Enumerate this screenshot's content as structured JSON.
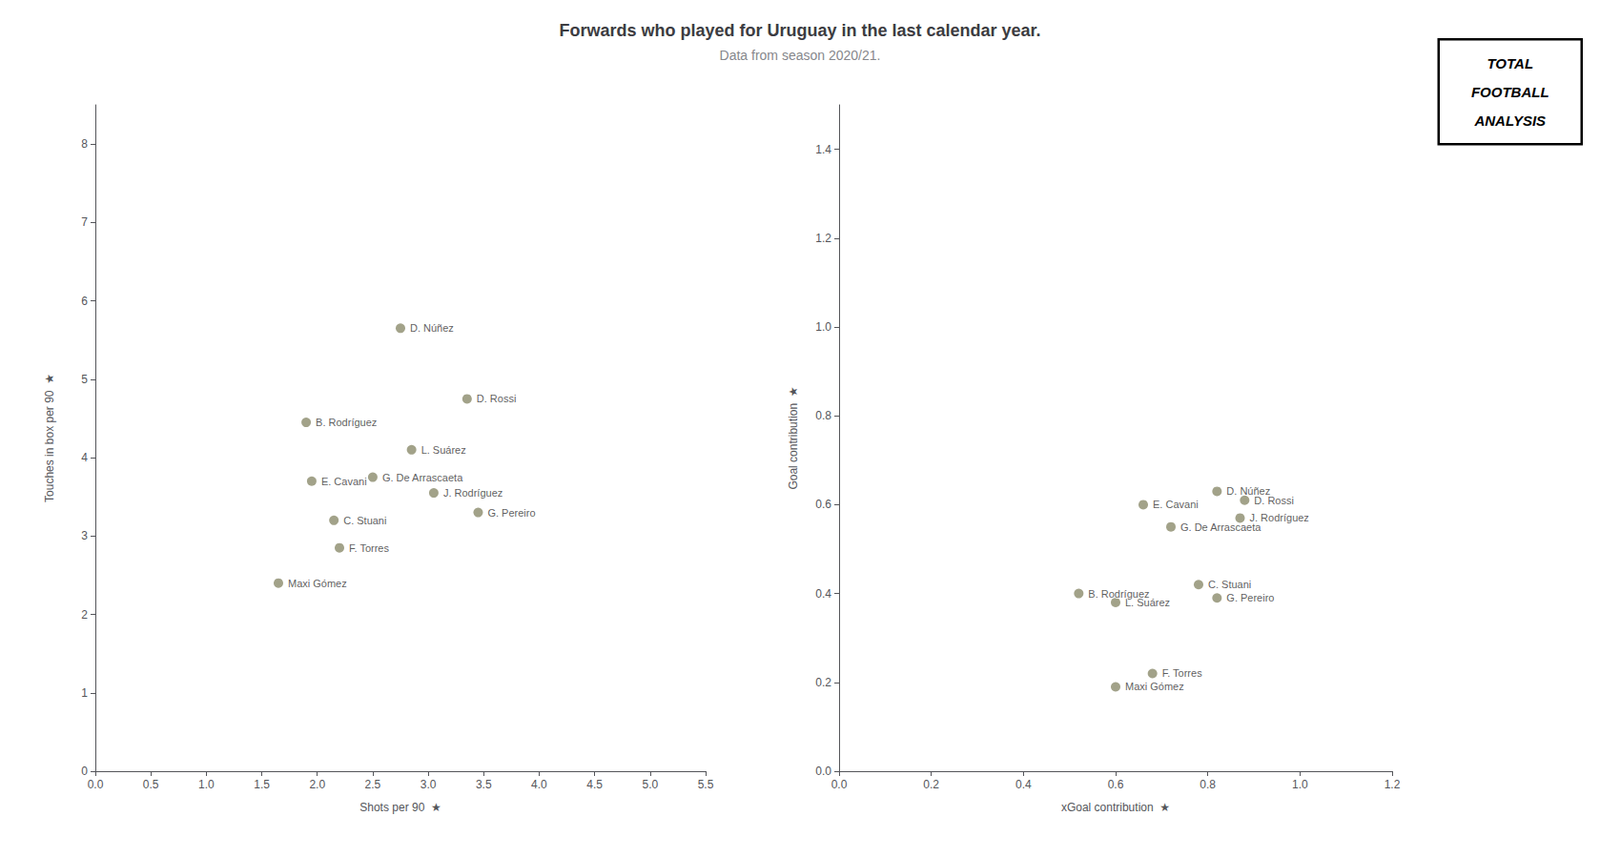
{
  "chart_data": [
    {
      "type": "scatter",
      "title": "Forwards who played for Uruguay in the last calendar year.",
      "subtitle": "Data from season 2020/21.",
      "xlabel": "Shots per 90  ★",
      "ylabel": "Touches in box per 90  ★",
      "xlim": [
        0.0,
        5.5
      ],
      "ylim": [
        0.0,
        8.5
      ],
      "xticks": [
        {
          "value": 0,
          "label": "0.0"
        },
        0.5,
        {
          "value": 1,
          "label": "1.0"
        },
        1.5,
        {
          "value": 2,
          "label": "2.0"
        },
        2.5,
        {
          "value": 3,
          "label": "3.0"
        },
        3.5,
        {
          "value": 4,
          "label": "4.0"
        },
        4.5,
        {
          "value": 5,
          "label": "5.0"
        },
        5.5
      ],
      "yticks": [
        0,
        1,
        2,
        3,
        4,
        5,
        6,
        7,
        8
      ],
      "grid": false,
      "color": "#8B8B6B",
      "x": [
        2.75,
        3.35,
        1.9,
        2.85,
        1.95,
        2.5,
        3.05,
        2.15,
        3.45,
        2.2,
        1.65
      ],
      "values": [
        5.65,
        4.75,
        4.45,
        4.1,
        3.7,
        3.75,
        3.55,
        3.2,
        3.3,
        2.85,
        2.4
      ],
      "value_labels": [
        "D. Núñez",
        "D. Rossi",
        "B. Rodríguez",
        "L. Suárez",
        "E. Cavani",
        "G. De Arrascaeta",
        "J. Rodríguez",
        "C. Stuani",
        "G. Pereiro",
        "F. Torres",
        "Maxi Gómez"
      ]
    },
    {
      "type": "scatter",
      "xlabel": "xGoal contribution  ★",
      "ylabel": "Goal contribution  ★",
      "xlim": [
        0.0,
        1.2
      ],
      "ylim": [
        0.0,
        1.5
      ],
      "xticks": [
        {
          "value": 0,
          "label": "0.0"
        },
        0.2,
        0.4,
        0.6,
        0.8,
        {
          "value": 1,
          "label": "1.0"
        },
        1.2
      ],
      "yticks": [
        {
          "value": 0,
          "label": "0.0"
        },
        0.2,
        0.4,
        0.6,
        0.8,
        {
          "value": 1,
          "label": "1.0"
        },
        1.2,
        1.4
      ],
      "grid": false,
      "color": "#8B8B6B",
      "x": [
        0.82,
        0.88,
        0.66,
        0.87,
        0.72,
        0.6,
        0.52,
        0.78,
        0.82,
        0.68,
        0.6
      ],
      "values": [
        0.63,
        0.61,
        0.6,
        0.57,
        0.55,
        0.38,
        0.4,
        0.42,
        0.39,
        0.22,
        0.19
      ],
      "value_labels": [
        "D. Núñez",
        "D. Rossi",
        "E. Cavani",
        "J. Rodríguez",
        "G. De Arrascaeta",
        "L. Suárez",
        "B. Rodríguez",
        "C. Stuani",
        "G. Pereiro",
        "F. Torres",
        "Maxi Gómez"
      ],
      "annotations": [
        "TOTAL",
        "FOOTBALL",
        "ANALYSIS"
      ]
    }
  ]
}
